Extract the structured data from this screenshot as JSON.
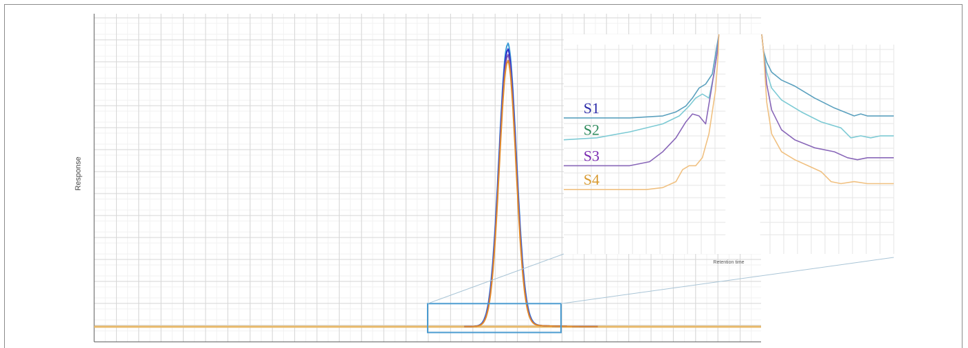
{
  "chart_data": {
    "type": "line",
    "ylabel": "Response",
    "xlabel": "",
    "main": {
      "xlim": [
        0,
        100
      ],
      "ylim": [
        0,
        100
      ],
      "baseline_color": "#e8b96a",
      "peak_center": 62,
      "series": [
        {
          "color": "#3b9bd6",
          "height": 97,
          "width": 1.3
        },
        {
          "color": "#2c2cc8",
          "height": 95,
          "width": 1.28
        },
        {
          "color": "#7a55b0",
          "height": 93,
          "width": 1.27
        },
        {
          "color": "#e08a2a",
          "height": 91,
          "width": 1.25
        }
      ],
      "zoom_box": {
        "x": [
          50,
          70
        ],
        "y": [
          -2,
          8
        ],
        "color": "#4a9bd0"
      }
    },
    "inset": {
      "xlabel": "Retention time",
      "xlim": [
        0,
        100
      ],
      "ylim": [
        0,
        100
      ],
      "series": [
        {
          "name": "S1",
          "color": "#5aa0be",
          "label_color": "#2a2aa8",
          "x": [
            0,
            20,
            30,
            34,
            37,
            39,
            41,
            43,
            45,
            46.2,
            47,
            60,
            60.5,
            61.5,
            63,
            66,
            70,
            76,
            82,
            88,
            90,
            92,
            95,
            100
          ],
          "y": [
            58,
            58,
            59,
            61,
            64,
            68,
            73,
            75,
            80,
            92,
            100,
            100,
            92,
            86,
            81,
            77,
            74,
            68,
            63,
            59,
            60,
            59,
            59,
            59
          ]
        },
        {
          "name": "S2",
          "color": "#7ccad4",
          "label_color": "#2e8a5c",
          "x": [
            0,
            10,
            20,
            30,
            35,
            38,
            40,
            42,
            44,
            45.5,
            46.6,
            47,
            60,
            60.5,
            61.5,
            63,
            66,
            72,
            78,
            84,
            87,
            90,
            93,
            96,
            100
          ],
          "y": [
            47,
            48,
            51,
            55,
            59,
            64,
            68,
            70,
            68,
            80,
            92,
            100,
            100,
            92,
            81,
            73,
            67,
            61,
            56,
            53,
            48,
            49,
            48,
            49,
            49
          ]
        },
        {
          "name": "S3",
          "color": "#8866b8",
          "label_color": "#7a2ab0",
          "x": [
            0,
            20,
            26,
            30,
            34,
            37,
            39,
            41,
            43,
            45,
            46.6,
            47,
            60,
            60.5,
            61.5,
            63,
            66,
            70,
            76,
            82,
            86,
            89,
            92,
            96,
            100
          ],
          "y": [
            34,
            34,
            36,
            41,
            48,
            56,
            60,
            59,
            55,
            75,
            92,
            100,
            100,
            92,
            75,
            62,
            52,
            47,
            43,
            41,
            38,
            37,
            38,
            38,
            38
          ]
        },
        {
          "name": "S4",
          "color": "#f0c080",
          "label_color": "#d89a30",
          "x": [
            0,
            25,
            30,
            34,
            36,
            38,
            40,
            42,
            44,
            46,
            46.8,
            47,
            60,
            60.5,
            61.5,
            63,
            66,
            70,
            74,
            78,
            81,
            84,
            88,
            92,
            96,
            100
          ],
          "y": [
            22,
            22,
            23,
            26,
            32,
            34,
            34,
            38,
            50,
            72,
            90,
            100,
            100,
            92,
            66,
            50,
            41,
            37,
            34,
            31,
            26,
            25,
            26,
            25,
            25,
            25
          ]
        }
      ]
    }
  }
}
